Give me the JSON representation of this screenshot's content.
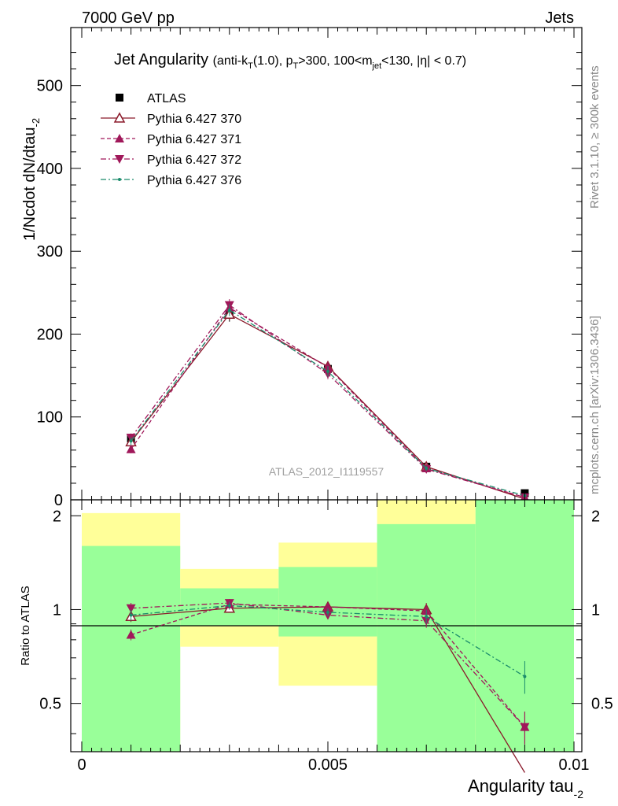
{
  "header": {
    "left": "7000 GeV pp",
    "right": "Jets"
  },
  "side_labels": {
    "rivet": "Rivet 3.1.10, ≥ 300k events",
    "mcplots": "mcplots.cern.ch [arXiv:1306.3436]"
  },
  "chart_data": [
    {
      "type": "line",
      "title": "Jet Angularity",
      "subtitle": "(anti-kT(1.0), pT>300, 100<mjet<130, |η| < 0.7)",
      "ylabel": "1/Ncdot dN/dtau_2",
      "xlabel": "",
      "analysis_label": "ATLAS_2012_I1119557",
      "xlim": [
        0,
        0.01
      ],
      "ylim": [
        0,
        570
      ],
      "yticks": [
        0,
        100,
        200,
        300,
        400,
        500
      ],
      "x": [
        0.001,
        0.003,
        0.005,
        0.007,
        0.009
      ],
      "series": [
        {
          "name": "ATLAS",
          "color": "#000000",
          "marker": "square",
          "style": "points",
          "values": [
            74,
            224,
            158,
            40,
            8
          ]
        },
        {
          "name": "Pythia 6.427 370",
          "color": "#8b1a2b",
          "marker": "triangle-open",
          "style": "solid",
          "values": [
            70,
            224,
            161,
            40,
            1
          ]
        },
        {
          "name": "Pythia 6.427 371",
          "color": "#a0185a",
          "marker": "triangle",
          "style": "dashed",
          "values": [
            61,
            232,
            160,
            38,
            3
          ]
        },
        {
          "name": "Pythia 6.427 372",
          "color": "#a0185a",
          "marker": "triangle-down",
          "style": "dashdot",
          "values": [
            75,
            235,
            152,
            37,
            3
          ]
        },
        {
          "name": "Pythia 6.427 376",
          "color": "#1a8b6b",
          "marker": "dot",
          "style": "dashdot",
          "values": [
            71,
            229,
            155,
            38,
            5
          ]
        }
      ]
    },
    {
      "type": "line",
      "title": "",
      "ylabel": "Ratio to ATLAS",
      "xlabel": "Angularity tau_2",
      "xlim": [
        0,
        0.01
      ],
      "ylim": [
        0.35,
        2.25
      ],
      "yscale": "log",
      "yticks": [
        0.5,
        1,
        2
      ],
      "xticks": [
        0,
        0.005,
        0.01
      ],
      "bands": {
        "edges": [
          0,
          0.002,
          0.004,
          0.006,
          0.008,
          0.01
        ],
        "yellow_lo": [
          0.35,
          0.76,
          0.57,
          0.35,
          0.35
        ],
        "yellow_hi": [
          2.04,
          1.35,
          1.64,
          2.25,
          2.25
        ],
        "green_lo": [
          0.35,
          0.89,
          0.82,
          0.35,
          0.35
        ],
        "green_hi": [
          1.6,
          1.17,
          1.37,
          1.88,
          2.25
        ]
      },
      "x": [
        0.001,
        0.003,
        0.005,
        0.007,
        0.009
      ],
      "series": [
        {
          "name": "Pythia 6.427 370",
          "values": [
            0.95,
            1.01,
            1.02,
            1.0,
            0.3
          ]
        },
        {
          "name": "Pythia 6.427 371",
          "values": [
            0.83,
            1.04,
            1.02,
            0.99,
            0.42
          ]
        },
        {
          "name": "Pythia 6.427 372",
          "values": [
            1.01,
            1.05,
            0.96,
            0.92,
            0.42
          ]
        },
        {
          "name": "Pythia 6.427 376",
          "values": [
            0.96,
            1.03,
            0.98,
            0.95,
            0.61
          ]
        }
      ]
    }
  ]
}
